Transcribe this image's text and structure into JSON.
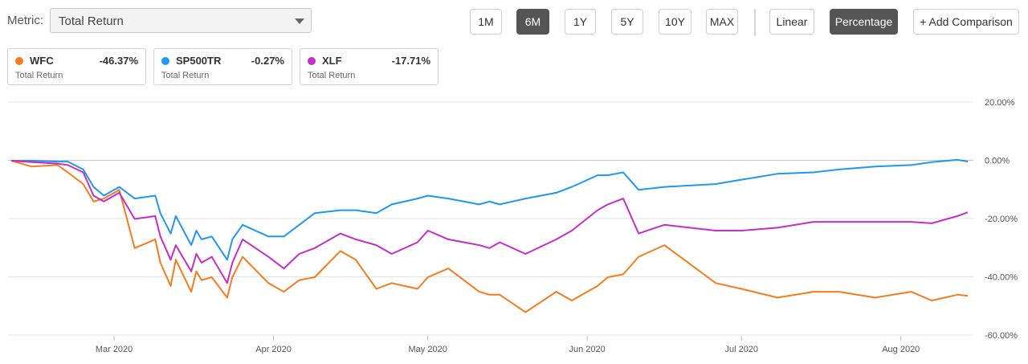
{
  "metric": {
    "label": "Metric:",
    "selected": "Total Return"
  },
  "range_buttons": [
    {
      "label": "1M",
      "active": false
    },
    {
      "label": "6M",
      "active": true
    },
    {
      "label": "1Y",
      "active": false
    },
    {
      "label": "5Y",
      "active": false
    },
    {
      "label": "10Y",
      "active": false
    },
    {
      "label": "MAX",
      "active": false
    }
  ],
  "scale_buttons": [
    {
      "label": "Linear",
      "active": false
    },
    {
      "label": "Percentage",
      "active": true
    }
  ],
  "add_comparison": "+ Add Comparison",
  "legend_cards": [
    {
      "ticker": "WFC",
      "value": "-46.37%",
      "sub": "Total Return",
      "color": "#f57c1f"
    },
    {
      "ticker": "SP500TR",
      "value": "-0.27%",
      "sub": "Total Return",
      "color": "#2196f3"
    },
    {
      "ticker": "XLF",
      "value": "-17.71%",
      "sub": "Total Return",
      "color": "#c62ec7"
    }
  ],
  "chart_data": {
    "type": "line",
    "title": "",
    "xlabel": "",
    "ylabel": "",
    "x_ticks": [
      "Mar 2020",
      "Apr 2020",
      "May 2020",
      "Jun 2020",
      "Jul 2020",
      "Aug 2020"
    ],
    "y_ticks": [
      "20.00%",
      "0.00%",
      "-20.00%",
      "-40.00%",
      "-60.00%"
    ],
    "ylim": [
      -60,
      20
    ],
    "grid": true,
    "x": [
      "2020-02-10",
      "2020-02-14",
      "2020-02-19",
      "2020-02-21",
      "2020-02-24",
      "2020-02-26",
      "2020-02-28",
      "2020-03-02",
      "2020-03-05",
      "2020-03-09",
      "2020-03-10",
      "2020-03-12",
      "2020-03-13",
      "2020-03-16",
      "2020-03-17",
      "2020-03-18",
      "2020-03-20",
      "2020-03-23",
      "2020-03-24",
      "2020-03-26",
      "2020-03-31",
      "2020-04-03",
      "2020-04-06",
      "2020-04-09",
      "2020-04-14",
      "2020-04-17",
      "2020-04-21",
      "2020-04-24",
      "2020-04-29",
      "2020-05-01",
      "2020-05-05",
      "2020-05-11",
      "2020-05-13",
      "2020-05-15",
      "2020-05-20",
      "2020-05-26",
      "2020-05-29",
      "2020-06-03",
      "2020-06-05",
      "2020-06-08",
      "2020-06-11",
      "2020-06-16",
      "2020-06-26",
      "2020-07-01",
      "2020-07-08",
      "2020-07-15",
      "2020-07-20",
      "2020-07-27",
      "2020-08-03",
      "2020-08-07",
      "2020-08-12",
      "2020-08-14"
    ],
    "series": [
      {
        "name": "WFC",
        "color": "#f57c1f",
        "values": [
          0,
          -2,
          -1.5,
          -4,
          -8,
          -14,
          -13,
          -10,
          -30,
          -27,
          -35,
          -43,
          -34,
          -45,
          -38,
          -41,
          -40,
          -47,
          -40,
          -33,
          -42,
          -45,
          -41,
          -40,
          -31,
          -34,
          -44,
          -42,
          -44,
          -40,
          -37,
          -45,
          -46,
          -46,
          -52,
          -45,
          -48,
          -43,
          -40,
          -39,
          -33,
          -29,
          -42,
          -44,
          -47,
          -45,
          -45,
          -47,
          -45,
          -48,
          -46,
          -46.37
        ]
      },
      {
        "name": "SP500TR",
        "color": "#2196f3",
        "values": [
          0,
          0,
          -0.3,
          -0.3,
          -3,
          -9,
          -12,
          -9,
          -13,
          -12,
          -18,
          -25,
          -19,
          -29,
          -24,
          -27,
          -26,
          -34,
          -27,
          -22,
          -26,
          -26,
          -22,
          -18,
          -17,
          -17,
          -18,
          -15,
          -13,
          -12,
          -13,
          -15,
          -14,
          -15,
          -13,
          -11,
          -9,
          -5,
          -5,
          -4,
          -10,
          -9,
          -8,
          -6.5,
          -4.5,
          -4,
          -3,
          -2,
          -1.5,
          -0.5,
          0.3,
          -0.27
        ]
      },
      {
        "name": "XLF",
        "color": "#c62ec7",
        "values": [
          0,
          -0.5,
          -1,
          -1.5,
          -4,
          -12,
          -14,
          -11,
          -20,
          -19,
          -26,
          -34,
          -29,
          -38,
          -32,
          -35,
          -33,
          -42,
          -35,
          -27,
          -33,
          -37,
          -32,
          -30,
          -25,
          -27,
          -29,
          -32,
          -28,
          -24,
          -27,
          -29,
          -30,
          -28,
          -32,
          -27,
          -24,
          -17,
          -15,
          -13,
          -25,
          -22,
          -24,
          -24,
          -23,
          -21,
          -21,
          -21,
          -21,
          -21.5,
          -19,
          -17.71
        ]
      }
    ]
  }
}
